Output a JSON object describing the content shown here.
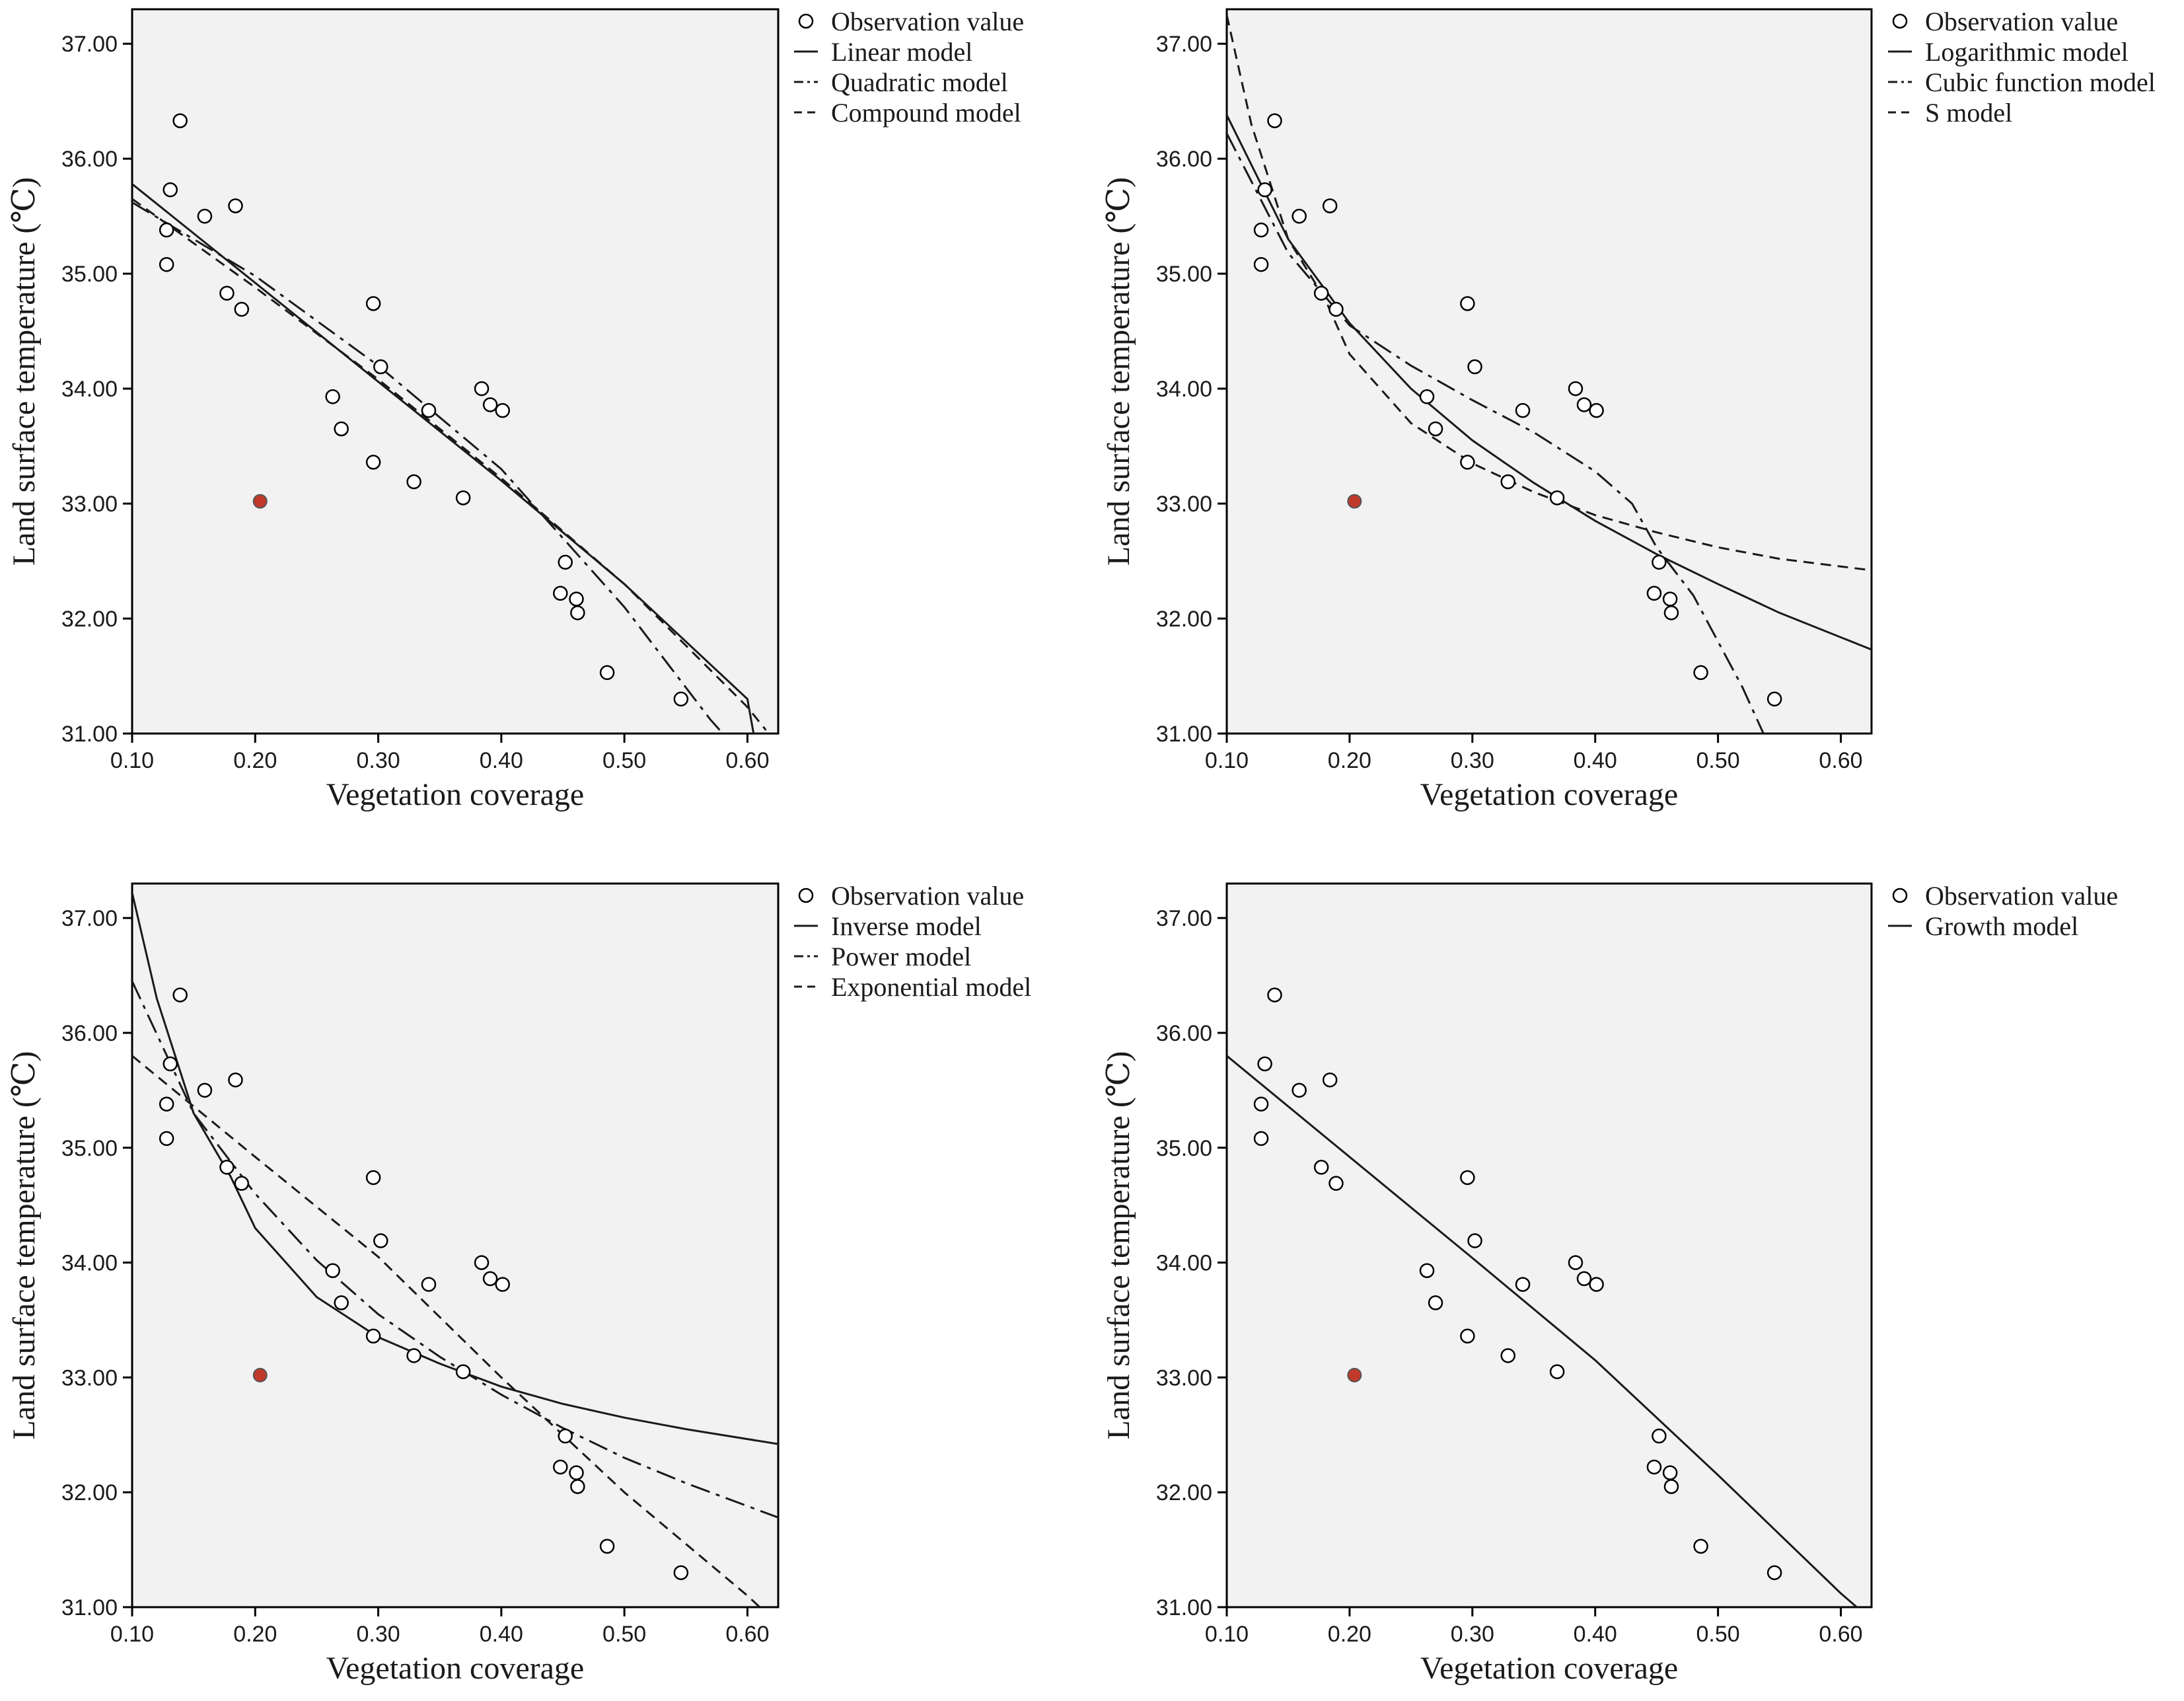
{
  "colors": {
    "plot_background": "#f2f2f2",
    "axis": "#000000",
    "model_line": "#1a1a1a",
    "observation_fill": "#ffffff",
    "highlight_point": "#c0392b"
  },
  "chart_data": [
    {
      "type": "scatter",
      "xlabel": "Vegetation coverage",
      "ylabel": "Land surface temperature (℃)",
      "xlim": [
        0.1,
        0.625
      ],
      "ylim": [
        31.0,
        37.3
      ],
      "xticks": [
        "0.10",
        "0.20",
        "0.30",
        "0.40",
        "0.50",
        "0.60"
      ],
      "yticks": [
        "31.00",
        "32.00",
        "33.00",
        "34.00",
        "35.00",
        "36.00",
        "37.00"
      ],
      "legend_position": "outside-right",
      "points": [
        [
          0.128,
          35.38
        ],
        [
          0.128,
          35.08
        ],
        [
          0.131,
          35.73
        ],
        [
          0.139,
          36.33
        ],
        [
          0.159,
          35.5
        ],
        [
          0.177,
          34.83
        ],
        [
          0.184,
          35.59
        ],
        [
          0.189,
          34.69
        ],
        [
          0.263,
          33.93
        ],
        [
          0.27,
          33.65
        ],
        [
          0.296,
          34.74
        ],
        [
          0.296,
          33.36
        ],
        [
          0.302,
          34.19
        ],
        [
          0.329,
          33.19
        ],
        [
          0.341,
          33.81
        ],
        [
          0.369,
          33.05
        ],
        [
          0.384,
          34.0
        ],
        [
          0.391,
          33.86
        ],
        [
          0.401,
          33.81
        ],
        [
          0.448,
          32.22
        ],
        [
          0.452,
          32.49
        ],
        [
          0.461,
          32.17
        ],
        [
          0.462,
          32.05
        ],
        [
          0.486,
          31.53
        ],
        [
          0.546,
          31.3
        ]
      ],
      "highlight_point": [
        0.204,
        33.02
      ],
      "series": [
        {
          "name": "Observation value",
          "style": "marker"
        },
        {
          "name": "Linear model",
          "style": "solid",
          "x": [
            0.1,
            0.2,
            0.3,
            0.4,
            0.5,
            0.6,
            0.605
          ],
          "y": [
            35.78,
            34.92,
            34.06,
            33.2,
            32.3,
            31.3,
            31.0
          ]
        },
        {
          "name": "Quadratic model",
          "style": "dashdot",
          "x": [
            0.1,
            0.2,
            0.3,
            0.4,
            0.5,
            0.57,
            0.58
          ],
          "y": [
            35.62,
            34.98,
            34.2,
            33.3,
            32.1,
            31.12,
            31.0
          ]
        },
        {
          "name": "Compound model",
          "style": "dash",
          "x": [
            0.1,
            0.2,
            0.3,
            0.4,
            0.5,
            0.6,
            0.615
          ],
          "y": [
            35.65,
            34.88,
            34.08,
            33.22,
            32.3,
            31.23,
            31.03
          ]
        }
      ]
    },
    {
      "type": "scatter",
      "xlabel": "Vegetation coverage",
      "ylabel": "Land surface temperature (℃)",
      "xlim": [
        0.1,
        0.625
      ],
      "ylim": [
        31.0,
        37.3
      ],
      "xticks": [
        "0.10",
        "0.20",
        "0.30",
        "0.40",
        "0.50",
        "0.60"
      ],
      "yticks": [
        "31.00",
        "32.00",
        "33.00",
        "34.00",
        "35.00",
        "36.00",
        "37.00"
      ],
      "legend_position": "outside-right",
      "points": [
        [
          0.128,
          35.38
        ],
        [
          0.128,
          35.08
        ],
        [
          0.131,
          35.73
        ],
        [
          0.139,
          36.33
        ],
        [
          0.159,
          35.5
        ],
        [
          0.177,
          34.83
        ],
        [
          0.184,
          35.59
        ],
        [
          0.189,
          34.69
        ],
        [
          0.263,
          33.93
        ],
        [
          0.27,
          33.65
        ],
        [
          0.296,
          34.74
        ],
        [
          0.296,
          33.36
        ],
        [
          0.302,
          34.19
        ],
        [
          0.329,
          33.19
        ],
        [
          0.341,
          33.81
        ],
        [
          0.369,
          33.05
        ],
        [
          0.384,
          34.0
        ],
        [
          0.391,
          33.86
        ],
        [
          0.401,
          33.81
        ],
        [
          0.448,
          32.22
        ],
        [
          0.452,
          32.49
        ],
        [
          0.461,
          32.17
        ],
        [
          0.462,
          32.05
        ],
        [
          0.486,
          31.53
        ],
        [
          0.546,
          31.3
        ]
      ],
      "highlight_point": [
        0.204,
        33.02
      ],
      "series": [
        {
          "name": "Observation value",
          "style": "marker"
        },
        {
          "name": "Logarithmic model",
          "style": "solid",
          "x": [
            0.1,
            0.15,
            0.2,
            0.25,
            0.3,
            0.35,
            0.4,
            0.45,
            0.5,
            0.55,
            0.625
          ],
          "y": [
            36.38,
            35.3,
            34.57,
            34.0,
            33.55,
            33.18,
            32.85,
            32.56,
            32.3,
            32.05,
            31.73
          ]
        },
        {
          "name": "Cubic function model",
          "style": "dashdot",
          "x": [
            0.1,
            0.15,
            0.2,
            0.25,
            0.3,
            0.35,
            0.4,
            0.43,
            0.45,
            0.48,
            0.5,
            0.52,
            0.537
          ],
          "y": [
            36.22,
            35.18,
            34.55,
            34.2,
            33.9,
            33.62,
            33.28,
            33.0,
            32.62,
            32.2,
            31.8,
            31.4,
            31.0
          ]
        },
        {
          "name": "S model",
          "style": "dash",
          "x": [
            0.1,
            0.12,
            0.15,
            0.18,
            0.2,
            0.25,
            0.3,
            0.35,
            0.4,
            0.45,
            0.5,
            0.55,
            0.625
          ],
          "y": [
            37.25,
            36.3,
            35.3,
            34.78,
            34.3,
            33.7,
            33.35,
            33.1,
            32.9,
            32.75,
            32.62,
            32.52,
            32.42
          ]
        }
      ]
    },
    {
      "type": "scatter",
      "xlabel": "Vegetation coverage",
      "ylabel": "Land surface temperature (℃)",
      "xlim": [
        0.1,
        0.625
      ],
      "ylim": [
        31.0,
        37.3
      ],
      "xticks": [
        "0.10",
        "0.20",
        "0.30",
        "0.40",
        "0.50",
        "0.60"
      ],
      "yticks": [
        "31.00",
        "32.00",
        "33.00",
        "34.00",
        "35.00",
        "36.00",
        "37.00"
      ],
      "legend_position": "outside-right",
      "points": [
        [
          0.128,
          35.38
        ],
        [
          0.128,
          35.08
        ],
        [
          0.131,
          35.73
        ],
        [
          0.139,
          36.33
        ],
        [
          0.159,
          35.5
        ],
        [
          0.177,
          34.83
        ],
        [
          0.184,
          35.59
        ],
        [
          0.189,
          34.69
        ],
        [
          0.263,
          33.93
        ],
        [
          0.27,
          33.65
        ],
        [
          0.296,
          34.74
        ],
        [
          0.296,
          33.36
        ],
        [
          0.302,
          34.19
        ],
        [
          0.329,
          33.19
        ],
        [
          0.341,
          33.81
        ],
        [
          0.369,
          33.05
        ],
        [
          0.384,
          34.0
        ],
        [
          0.391,
          33.86
        ],
        [
          0.401,
          33.81
        ],
        [
          0.448,
          32.22
        ],
        [
          0.452,
          32.49
        ],
        [
          0.461,
          32.17
        ],
        [
          0.462,
          32.05
        ],
        [
          0.486,
          31.53
        ],
        [
          0.546,
          31.3
        ]
      ],
      "highlight_point": [
        0.204,
        33.02
      ],
      "series": [
        {
          "name": "Observation value",
          "style": "marker"
        },
        {
          "name": "Inverse model",
          "style": "solid",
          "x": [
            0.1,
            0.12,
            0.15,
            0.18,
            0.2,
            0.25,
            0.3,
            0.35,
            0.4,
            0.45,
            0.5,
            0.55,
            0.625
          ],
          "y": [
            37.22,
            36.3,
            35.3,
            34.75,
            34.3,
            33.7,
            33.35,
            33.12,
            32.92,
            32.77,
            32.65,
            32.55,
            32.42
          ]
        },
        {
          "name": "Power model",
          "style": "dashdot",
          "x": [
            0.1,
            0.15,
            0.2,
            0.25,
            0.3,
            0.35,
            0.4,
            0.45,
            0.5,
            0.55,
            0.625
          ],
          "y": [
            36.45,
            35.3,
            34.6,
            34.02,
            33.55,
            33.18,
            32.85,
            32.56,
            32.3,
            32.08,
            31.78
          ]
        },
        {
          "name": "Exponential model",
          "style": "dash",
          "x": [
            0.1,
            0.2,
            0.3,
            0.4,
            0.5,
            0.6,
            0.61
          ],
          "y": [
            35.8,
            34.92,
            34.05,
            33.0,
            32.0,
            31.1,
            31.0
          ]
        }
      ]
    },
    {
      "type": "scatter",
      "xlabel": "Vegetation coverage",
      "ylabel": "Land surface temperature (℃)",
      "xlim": [
        0.1,
        0.625
      ],
      "ylim": [
        31.0,
        37.3
      ],
      "xticks": [
        "0.10",
        "0.20",
        "0.30",
        "0.40",
        "0.50",
        "0.60"
      ],
      "yticks": [
        "31.00",
        "32.00",
        "33.00",
        "34.00",
        "35.00",
        "36.00",
        "37.00"
      ],
      "legend_position": "outside-right",
      "points": [
        [
          0.128,
          35.38
        ],
        [
          0.128,
          35.08
        ],
        [
          0.131,
          35.73
        ],
        [
          0.139,
          36.33
        ],
        [
          0.159,
          35.5
        ],
        [
          0.177,
          34.83
        ],
        [
          0.184,
          35.59
        ],
        [
          0.189,
          34.69
        ],
        [
          0.263,
          33.93
        ],
        [
          0.27,
          33.65
        ],
        [
          0.296,
          34.74
        ],
        [
          0.296,
          33.36
        ],
        [
          0.302,
          34.19
        ],
        [
          0.329,
          33.19
        ],
        [
          0.341,
          33.81
        ],
        [
          0.369,
          33.05
        ],
        [
          0.384,
          34.0
        ],
        [
          0.391,
          33.86
        ],
        [
          0.401,
          33.81
        ],
        [
          0.448,
          32.22
        ],
        [
          0.452,
          32.49
        ],
        [
          0.461,
          32.17
        ],
        [
          0.462,
          32.05
        ],
        [
          0.486,
          31.53
        ],
        [
          0.546,
          31.3
        ]
      ],
      "highlight_point": [
        0.204,
        33.02
      ],
      "series": [
        {
          "name": "Observation value",
          "style": "marker"
        },
        {
          "name": "Growth model",
          "style": "solid",
          "x": [
            0.1,
            0.2,
            0.3,
            0.4,
            0.5,
            0.6,
            0.613
          ],
          "y": [
            35.8,
            34.92,
            34.04,
            33.15,
            32.15,
            31.12,
            31.0
          ]
        }
      ]
    }
  ]
}
